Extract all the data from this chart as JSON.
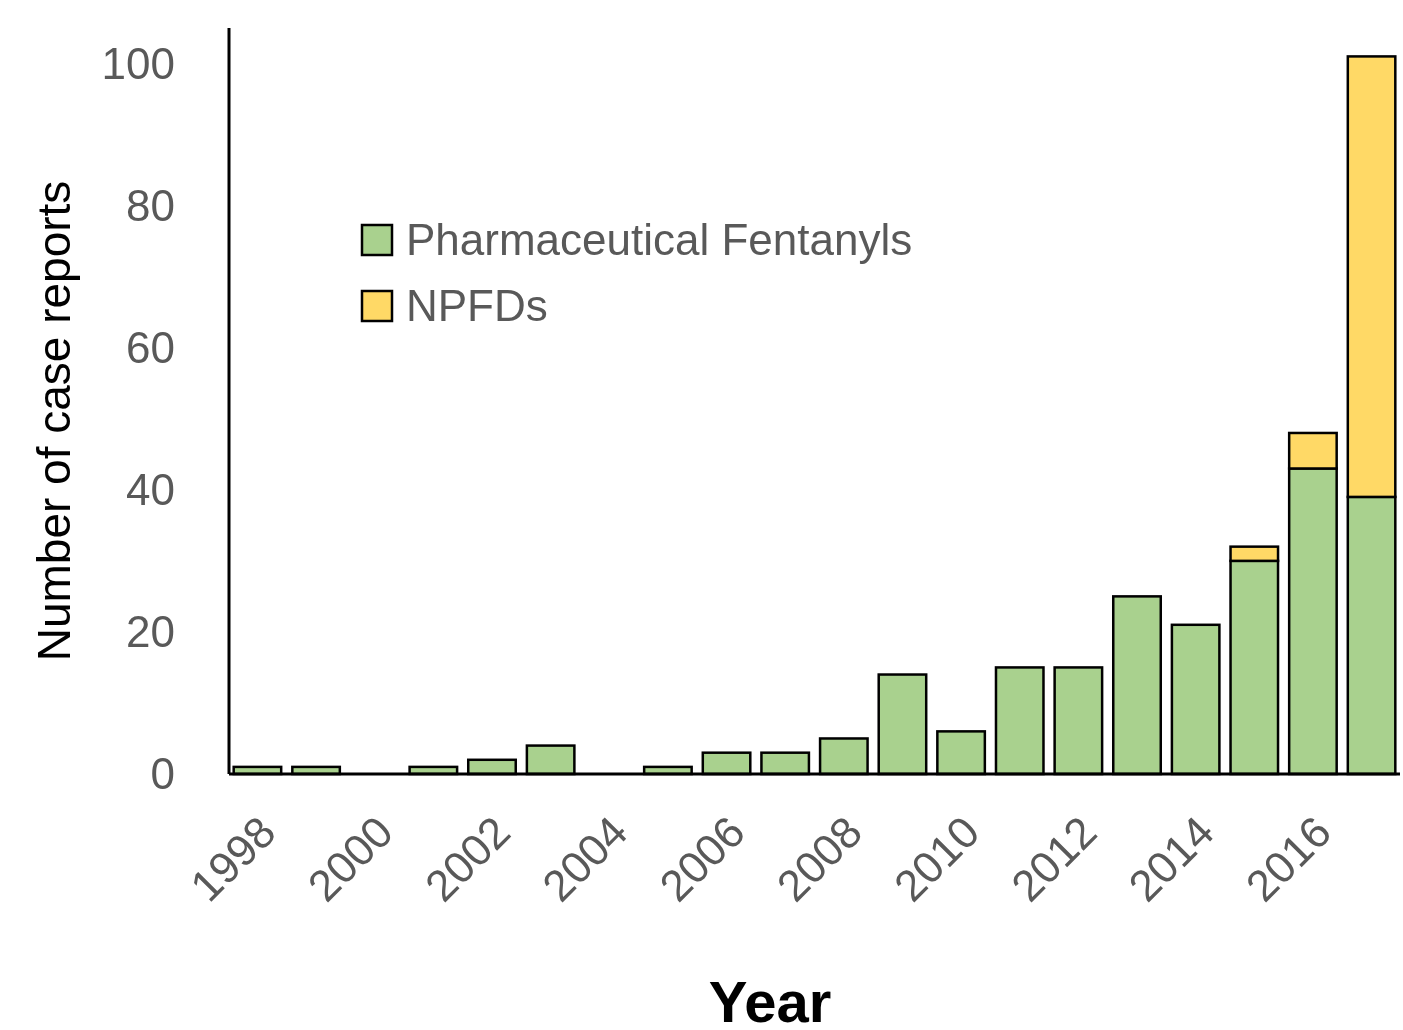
{
  "chart_data": {
    "type": "bar",
    "xlabel": "Year",
    "ylabel": "Number of case reports",
    "categories": [
      "1998",
      null,
      "2000",
      null,
      "2002",
      null,
      "2004",
      null,
      "2006",
      null,
      "2008",
      null,
      "2010",
      null,
      "2012",
      null,
      "2014",
      null,
      "2016",
      null
    ],
    "stacked": true,
    "series": [
      {
        "name": "Pharmaceutical Fentanyls",
        "color": "#a9d18e",
        "values": [
          1,
          1,
          0,
          1,
          2,
          4,
          0,
          1,
          3,
          3,
          5,
          14,
          6,
          15,
          15,
          25,
          21,
          30,
          43,
          39
        ]
      },
      {
        "name": "NPFDs",
        "color": "#ffd966",
        "values": [
          0,
          0,
          0,
          0,
          0,
          0,
          0,
          0,
          0,
          0,
          0,
          0,
          0,
          0,
          0,
          0,
          0,
          2,
          5,
          62
        ]
      }
    ],
    "ylim": [
      0,
      105
    ],
    "yticks": [
      0,
      20,
      40,
      60,
      80,
      100
    ],
    "grid": false,
    "legend": "top left"
  }
}
